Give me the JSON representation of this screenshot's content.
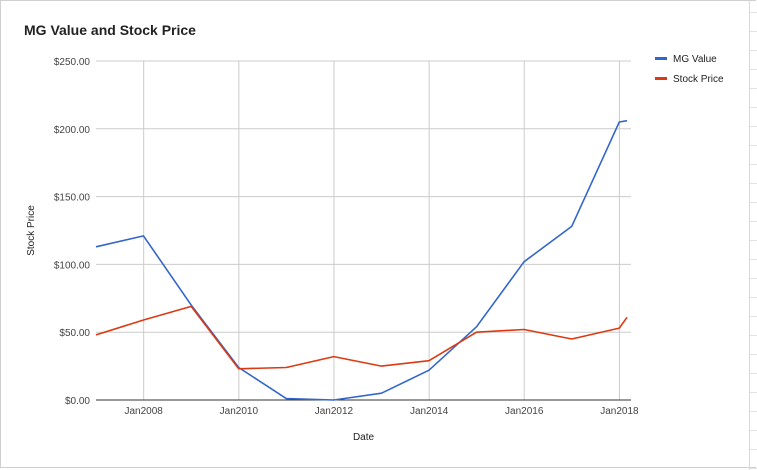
{
  "chart_data": {
    "type": "line",
    "title": "MG Value and Stock Price",
    "xlabel": "Date",
    "ylabel": "Stock Price",
    "x": [
      "2006-12-31",
      "2007-12-31",
      "2008-12-31",
      "2009-12-31",
      "2010-12-31",
      "2011-12-31",
      "2012-12-31",
      "2013-12-31",
      "2014-12-31",
      "2015-12-31",
      "2016-12-31",
      "2017-12-31",
      "2018-02-28"
    ],
    "series": [
      {
        "name": "MG Value",
        "color": "#3366cc",
        "values": [
          113,
          121,
          70,
          24,
          1,
          0,
          5,
          22,
          54,
          102,
          128,
          205,
          206
        ]
      },
      {
        "name": "Stock Price",
        "color": "#dc3912",
        "values": [
          48,
          59,
          69,
          23,
          24,
          32,
          25,
          29,
          50,
          52,
          45,
          53,
          61
        ]
      }
    ],
    "ylim": [
      0,
      250
    ],
    "yticks": [
      0,
      50,
      100,
      150,
      200,
      250
    ],
    "ytick_labels": [
      "$0.00",
      "$50.00",
      "$100.00",
      "$150.00",
      "$200.00",
      "$250.00"
    ],
    "xticks": [
      "2008-01-01",
      "2010-01-01",
      "2012-01-01",
      "2014-01-01",
      "2016-01-01",
      "2018-01-01"
    ],
    "xtick_labels": [
      "Jan2008",
      "Jan2010",
      "Jan2012",
      "Jan2014",
      "Jan2016",
      "Jan2018"
    ],
    "xlim": [
      "2006-12-31",
      "2018-03-31"
    ],
    "grid": true,
    "legend": "right"
  }
}
